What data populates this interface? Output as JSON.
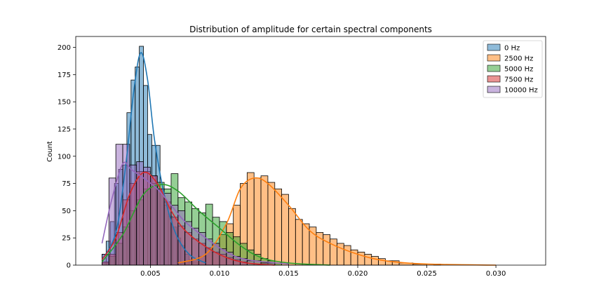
{
  "chart_data": {
    "type": "histogram",
    "title": "Distribution of amplitude for certain spectral components",
    "xlabel": "",
    "ylabel": "Count",
    "xlim": [
      -0.0004,
      0.0336
    ],
    "ylim": [
      0,
      210
    ],
    "xticks": [
      0.005,
      0.01,
      0.015,
      0.02,
      0.025,
      0.03
    ],
    "xtick_labels": [
      "0.005",
      "0.010",
      "0.015",
      "0.020",
      "0.025",
      "0.030"
    ],
    "yticks": [
      0,
      25,
      50,
      75,
      100,
      125,
      150,
      175,
      200
    ],
    "ytick_labels": [
      "0",
      "25",
      "50",
      "75",
      "100",
      "125",
      "150",
      "175",
      "200"
    ],
    "legend_position": "top-right",
    "series": [
      {
        "name": "0 Hz",
        "color": "#1f77b4",
        "bins": [
          [
            0.0015,
            0.0018,
            10
          ],
          [
            0.0018,
            0.0021,
            22
          ],
          [
            0.0021,
            0.0024,
            40
          ],
          [
            0.0024,
            0.0027,
            75
          ],
          [
            0.0027,
            0.003,
            88
          ],
          [
            0.003,
            0.0033,
            92
          ],
          [
            0.0033,
            0.0036,
            140
          ],
          [
            0.0036,
            0.0039,
            170
          ],
          [
            0.0039,
            0.0042,
            182
          ],
          [
            0.0042,
            0.0045,
            201
          ],
          [
            0.0045,
            0.0048,
            165
          ],
          [
            0.0048,
            0.0051,
            120
          ],
          [
            0.0051,
            0.0054,
            110
          ],
          [
            0.0054,
            0.0057,
            110
          ],
          [
            0.0057,
            0.006,
            70
          ],
          [
            0.006,
            0.0063,
            55
          ],
          [
            0.0063,
            0.0066,
            45
          ],
          [
            0.0066,
            0.0069,
            35
          ],
          [
            0.0069,
            0.0072,
            25
          ],
          [
            0.0072,
            0.0075,
            18
          ],
          [
            0.0075,
            0.0078,
            10
          ],
          [
            0.0078,
            0.0081,
            5
          ],
          [
            0.0081,
            0.0084,
            3
          ]
        ],
        "kde": [
          [
            0.0015,
            5
          ],
          [
            0.0025,
            30
          ],
          [
            0.0032,
            90
          ],
          [
            0.0038,
            160
          ],
          [
            0.0043,
            195
          ],
          [
            0.0048,
            170
          ],
          [
            0.0053,
            115
          ],
          [
            0.006,
            65
          ],
          [
            0.0068,
            30
          ],
          [
            0.0078,
            10
          ],
          [
            0.009,
            2
          ]
        ]
      },
      {
        "name": "2500 Hz",
        "color": "#ff7f0e",
        "bins": [
          [
            0.007,
            0.0075,
            2
          ],
          [
            0.0075,
            0.008,
            3
          ],
          [
            0.008,
            0.0085,
            5
          ],
          [
            0.0085,
            0.009,
            8
          ],
          [
            0.009,
            0.0095,
            15
          ],
          [
            0.0095,
            0.01,
            20
          ],
          [
            0.01,
            0.0105,
            28
          ],
          [
            0.0105,
            0.011,
            38
          ],
          [
            0.011,
            0.0115,
            55
          ],
          [
            0.0115,
            0.012,
            75
          ],
          [
            0.012,
            0.0125,
            85
          ],
          [
            0.0125,
            0.013,
            80
          ],
          [
            0.013,
            0.0135,
            82
          ],
          [
            0.0135,
            0.014,
            76
          ],
          [
            0.014,
            0.0145,
            70
          ],
          [
            0.0145,
            0.015,
            65
          ],
          [
            0.015,
            0.0155,
            52
          ],
          [
            0.0155,
            0.016,
            42
          ],
          [
            0.016,
            0.0165,
            38
          ],
          [
            0.0165,
            0.017,
            35
          ],
          [
            0.017,
            0.0175,
            30
          ],
          [
            0.0175,
            0.018,
            28
          ],
          [
            0.018,
            0.0185,
            24
          ],
          [
            0.0185,
            0.019,
            20
          ],
          [
            0.019,
            0.0195,
            18
          ],
          [
            0.0195,
            0.02,
            14
          ],
          [
            0.02,
            0.0205,
            12
          ],
          [
            0.0205,
            0.021,
            10
          ],
          [
            0.021,
            0.0215,
            8
          ],
          [
            0.0215,
            0.022,
            6
          ],
          [
            0.022,
            0.0225,
            4
          ],
          [
            0.0225,
            0.023,
            4
          ],
          [
            0.023,
            0.024,
            2
          ],
          [
            0.024,
            0.025,
            1
          ],
          [
            0.0255,
            0.026,
            1
          ]
        ],
        "kde": [
          [
            0.007,
            2
          ],
          [
            0.009,
            10
          ],
          [
            0.0105,
            38
          ],
          [
            0.0115,
            70
          ],
          [
            0.0125,
            80
          ],
          [
            0.0135,
            75
          ],
          [
            0.015,
            55
          ],
          [
            0.0165,
            32
          ],
          [
            0.018,
            20
          ],
          [
            0.02,
            10
          ],
          [
            0.022,
            4
          ],
          [
            0.025,
            1
          ],
          [
            0.03,
            0
          ]
        ]
      },
      {
        "name": "5000 Hz",
        "color": "#2ca02c",
        "bins": [
          [
            0.0015,
            0.002,
            2
          ],
          [
            0.002,
            0.0025,
            8
          ],
          [
            0.0025,
            0.003,
            20
          ],
          [
            0.003,
            0.0035,
            35
          ],
          [
            0.0035,
            0.004,
            50
          ],
          [
            0.004,
            0.0045,
            60
          ],
          [
            0.0045,
            0.005,
            70
          ],
          [
            0.005,
            0.0055,
            75
          ],
          [
            0.0055,
            0.006,
            76
          ],
          [
            0.006,
            0.0065,
            70
          ],
          [
            0.0065,
            0.007,
            84
          ],
          [
            0.007,
            0.0075,
            62
          ],
          [
            0.0075,
            0.008,
            58
          ],
          [
            0.008,
            0.0085,
            52
          ],
          [
            0.0085,
            0.009,
            48
          ],
          [
            0.009,
            0.0095,
            56
          ],
          [
            0.0095,
            0.01,
            44
          ],
          [
            0.01,
            0.0105,
            40
          ],
          [
            0.0105,
            0.011,
            30
          ],
          [
            0.011,
            0.0115,
            26
          ],
          [
            0.0115,
            0.012,
            20
          ],
          [
            0.012,
            0.0125,
            14
          ],
          [
            0.0125,
            0.013,
            10
          ],
          [
            0.013,
            0.0135,
            6
          ],
          [
            0.0135,
            0.014,
            4
          ],
          [
            0.014,
            0.0145,
            2
          ]
        ],
        "kde": [
          [
            0.0015,
            3
          ],
          [
            0.003,
            28
          ],
          [
            0.0045,
            65
          ],
          [
            0.0058,
            74
          ],
          [
            0.007,
            68
          ],
          [
            0.0085,
            50
          ],
          [
            0.01,
            34
          ],
          [
            0.0115,
            18
          ],
          [
            0.013,
            7
          ],
          [
            0.015,
            2
          ],
          [
            0.018,
            0
          ]
        ]
      },
      {
        "name": "7500 Hz",
        "color": "#d62728",
        "bins": [
          [
            0.0015,
            0.002,
            3
          ],
          [
            0.002,
            0.0025,
            10
          ],
          [
            0.0025,
            0.003,
            30
          ],
          [
            0.003,
            0.0035,
            60
          ],
          [
            0.0035,
            0.004,
            75
          ],
          [
            0.004,
            0.0045,
            86
          ],
          [
            0.0045,
            0.005,
            86
          ],
          [
            0.005,
            0.0055,
            82
          ],
          [
            0.0055,
            0.006,
            70
          ],
          [
            0.006,
            0.0065,
            58
          ],
          [
            0.0065,
            0.007,
            44
          ],
          [
            0.007,
            0.0075,
            36
          ],
          [
            0.0075,
            0.008,
            30
          ],
          [
            0.008,
            0.0085,
            24
          ],
          [
            0.0085,
            0.009,
            20
          ],
          [
            0.009,
            0.0095,
            16
          ],
          [
            0.0095,
            0.01,
            12
          ],
          [
            0.01,
            0.0105,
            10
          ],
          [
            0.0105,
            0.011,
            7
          ],
          [
            0.011,
            0.0115,
            5
          ],
          [
            0.0115,
            0.012,
            3
          ]
        ],
        "kde": [
          [
            0.0015,
            5
          ],
          [
            0.0025,
            25
          ],
          [
            0.0035,
            65
          ],
          [
            0.0045,
            85
          ],
          [
            0.0055,
            75
          ],
          [
            0.0065,
            50
          ],
          [
            0.0075,
            32
          ],
          [
            0.009,
            17
          ],
          [
            0.0105,
            7
          ],
          [
            0.012,
            2
          ],
          [
            0.014,
            0
          ]
        ]
      },
      {
        "name": "10000 Hz",
        "color": "#9467bd",
        "bins": [
          [
            0.0015,
            0.002,
            10
          ],
          [
            0.002,
            0.0025,
            80
          ],
          [
            0.0025,
            0.003,
            111
          ],
          [
            0.003,
            0.0035,
            111
          ],
          [
            0.0035,
            0.004,
            92
          ],
          [
            0.004,
            0.0045,
            95
          ],
          [
            0.0045,
            0.005,
            90
          ],
          [
            0.005,
            0.0055,
            82
          ],
          [
            0.0055,
            0.006,
            70
          ],
          [
            0.006,
            0.0065,
            66
          ],
          [
            0.0065,
            0.007,
            55
          ],
          [
            0.007,
            0.0075,
            50
          ],
          [
            0.0075,
            0.008,
            40
          ],
          [
            0.008,
            0.0085,
            34
          ],
          [
            0.0085,
            0.009,
            30
          ],
          [
            0.009,
            0.0095,
            24
          ],
          [
            0.0095,
            0.01,
            20
          ],
          [
            0.01,
            0.0105,
            15
          ],
          [
            0.0105,
            0.011,
            12
          ],
          [
            0.011,
            0.0115,
            8
          ],
          [
            0.0115,
            0.012,
            6
          ],
          [
            0.012,
            0.013,
            4
          ],
          [
            0.013,
            0.014,
            2
          ]
        ],
        "kde": [
          [
            0.0015,
            20
          ],
          [
            0.0022,
            60
          ],
          [
            0.003,
            93
          ],
          [
            0.0036,
            88
          ],
          [
            0.0045,
            80
          ],
          [
            0.0055,
            70
          ],
          [
            0.0065,
            55
          ],
          [
            0.0075,
            40
          ],
          [
            0.009,
            25
          ],
          [
            0.0105,
            12
          ],
          [
            0.012,
            5
          ],
          [
            0.015,
            1
          ]
        ]
      }
    ]
  }
}
